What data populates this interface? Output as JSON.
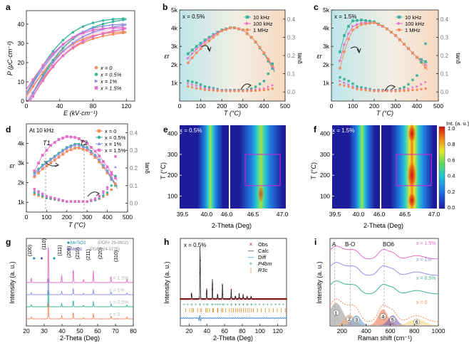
{
  "figure": {
    "panels": {
      "a": {
        "letter": "a",
        "ylabel": "P (μC·cm⁻²)",
        "xlabel": "E (kV·cm⁻¹)",
        "legend": [
          "x = 0",
          "x = 0.5%",
          "x = 1%",
          "x = 1.5%"
        ]
      },
      "b": {
        "letter": "b",
        "annotation": "x = 0.5%",
        "ylabel": "εr",
        "y2label": "tanδ",
        "xlabel": "T (°C)",
        "legend": [
          "10 kHz",
          "100 kHz",
          "1 MHz"
        ]
      },
      "c": {
        "letter": "c",
        "annotation": "x = 1.5%",
        "ylabel": "εr",
        "y2label": "tanδ",
        "xlabel": "T (°C)",
        "legend": [
          "10 kHz",
          "100 kHz",
          "1 MHz"
        ]
      },
      "d": {
        "letter": "d",
        "annotation": "At 10 kHz",
        "t1": "T1",
        "t2": "T2",
        "ylabel": "εr",
        "y2label": "tanδ",
        "xlabel": "T (°C)",
        "legend": [
          "x = 0",
          "x = 0.5%",
          "x = 1%",
          "x = 1.5%"
        ]
      },
      "e": {
        "letter": "e",
        "annotation": "x = 0.5%",
        "ylabel": "T (°C)",
        "xlabel": "2-Theta (Deg)",
        "xticks_left": [
          "39.5",
          "40.0",
          "46.0"
        ],
        "xticks_right": [
          "46.5",
          "47.0"
        ]
      },
      "f": {
        "letter": "f",
        "annotation": "x = 1.5%",
        "ylabel": "T (°C)",
        "xlabel": "2-Theta (Deg)",
        "xticks_left": [
          "39.5",
          "40.0",
          "46.0"
        ],
        "xticks_right": [
          "46.5",
          "47.0"
        ],
        "colorbar_title": "Int. (a. u.)",
        "colorbar_ticks": [
          "1.0",
          "0.8",
          "0.6",
          "0.4",
          "0.2",
          "0.0"
        ]
      },
      "g": {
        "letter": "g",
        "ylabel": "Intensity (a. u.)",
        "xlabel": "2-Theta (Deg)",
        "peaks": [
          "(100)",
          "(110)",
          "(111)",
          "(200)",
          "(210)",
          "(211)",
          "(220)",
          "(310)"
        ],
        "ref1": "MnTiO3",
        "ref1_pdf": "(PDF# 29-0902)",
        "ref2": "MnO2",
        "ref2_pdf": "(PDF# 24-0735)",
        "series_labels": [
          "x = 1.5%",
          "x = 1%",
          "x = 0.5%",
          "x = 0"
        ]
      },
      "h": {
        "letter": "h",
        "annotation": "x = 0.5%",
        "ylabel": "Intensity (a. u.)",
        "xlabel": "2-Theta (Deg)",
        "legend": [
          "Obs",
          "Calc",
          "Diff",
          "P4bm",
          "R3c"
        ]
      },
      "i": {
        "letter": "i",
        "ylabel": "Intensity (a. u.)",
        "xlabel": "Raman shift (cm⁻¹)",
        "band_A": "A",
        "band_BO": "B-O",
        "band_BO6": "BO6",
        "series_labels": [
          "x = 1.5%",
          "x = 1%",
          "x = 0.5%",
          "x = 0"
        ],
        "peak_numbers": [
          "1",
          "2",
          "3",
          "4",
          "5",
          "6"
        ]
      }
    },
    "colors": {
      "x0": "#f58a5a",
      "x05": "#3cb39a",
      "x1": "#8f8fe8",
      "x15": "#e36ec8",
      "f10k": "#3cb39a",
      "f100k": "#e36ec8",
      "f1M": "#f58a5a"
    }
  },
  "chart_data": [
    {
      "panel": "a",
      "type": "line",
      "title": "",
      "xlabel": "E (kV·cm⁻¹)",
      "ylabel": "P (μC·cm⁻²)",
      "xlim": [
        0,
        130
      ],
      "ylim": [
        0,
        47
      ],
      "xticks": [
        0,
        40,
        80,
        120
      ],
      "yticks": [
        0,
        10,
        20,
        30,
        40
      ],
      "series": [
        {
          "name": "x = 0",
          "ps": 36.5,
          "pr": 2.0,
          "emax": 120
        },
        {
          "name": "x = 0.5%",
          "ps": 43.5,
          "pr": 3.5,
          "emax": 120
        },
        {
          "name": "x = 1%",
          "ps": 40.5,
          "pr": 3.0,
          "emax": 120
        },
        {
          "name": "x = 1.5%",
          "ps": 38.5,
          "pr": 5.5,
          "emax": 120
        }
      ]
    },
    {
      "panel": "b",
      "type": "line",
      "xlabel": "T (°C)",
      "ylabel": "εr",
      "y2label": "tanδ",
      "xlim": [
        0,
        500
      ],
      "ylim": [
        0,
        5000
      ],
      "y2lim": [
        -0.05,
        0.45
      ],
      "xticks": [
        0,
        100,
        200,
        300,
        400,
        500
      ],
      "yticks": [
        "1k",
        "2k",
        "3k",
        "4k",
        "5k"
      ],
      "y2ticks": [
        0.0,
        0.1,
        0.2,
        0.3,
        0.4
      ],
      "eps_series": [
        {
          "name": "10 kHz",
          "T": [
            40,
            80,
            120,
            160,
            200,
            250,
            300,
            350,
            400,
            450
          ],
          "v": [
            2600,
            3000,
            3350,
            3650,
            3900,
            4050,
            3900,
            3400,
            2600,
            1600
          ]
        },
        {
          "name": "100 kHz",
          "T": [
            40,
            80,
            120,
            160,
            200,
            250,
            300,
            350,
            400,
            450
          ],
          "v": [
            2350,
            2850,
            3250,
            3600,
            3880,
            4050,
            3900,
            3400,
            2650,
            1700
          ]
        },
        {
          "name": "1 MHz",
          "T": [
            40,
            80,
            120,
            160,
            200,
            250,
            300,
            350,
            400,
            450
          ],
          "v": [
            2100,
            2650,
            3100,
            3500,
            3850,
            4050,
            3900,
            3400,
            2650,
            1800
          ]
        }
      ],
      "tan_series": [
        {
          "name": "10 kHz",
          "T": [
            40,
            80,
            120,
            200,
            300,
            350,
            400,
            430,
            450
          ],
          "v": [
            0.06,
            0.05,
            0.03,
            0.01,
            0.01,
            0.02,
            0.06,
            0.12,
            0.19
          ]
        },
        {
          "name": "100 kHz",
          "T": [
            40,
            80,
            120,
            200,
            300,
            350,
            400,
            450
          ],
          "v": [
            0.045,
            0.035,
            0.02,
            0.01,
            0.01,
            0.012,
            0.02,
            0.04
          ]
        },
        {
          "name": "1 MHz",
          "T": [
            40,
            80,
            120,
            200,
            300,
            350,
            400,
            450
          ],
          "v": [
            0.03,
            0.02,
            0.012,
            0.005,
            0.005,
            0.006,
            0.01,
            0.02
          ]
        }
      ]
    },
    {
      "panel": "c",
      "type": "line",
      "xlabel": "T (°C)",
      "ylabel": "εr",
      "y2label": "tanδ",
      "xlim": [
        0,
        500
      ],
      "ylim": [
        0,
        5000
      ],
      "y2lim": [
        -0.05,
        0.45
      ],
      "xticks": [
        0,
        100,
        200,
        300,
        400,
        500
      ],
      "yticks": [
        "1k",
        "2k",
        "3k",
        "4k",
        "5k"
      ],
      "y2ticks": [
        0.0,
        0.1,
        0.2,
        0.3,
        0.4
      ],
      "eps_series": [
        {
          "name": "10 kHz",
          "T": [
            40,
            60,
            80,
            100,
            140,
            200,
            250,
            300,
            350,
            400,
            450
          ],
          "v": [
            2700,
            3600,
            4100,
            4400,
            4450,
            4350,
            4050,
            3600,
            3000,
            2400,
            2100
          ]
        },
        {
          "name": "100 kHz",
          "T": [
            40,
            60,
            80,
            100,
            140,
            200,
            250,
            300,
            350,
            400,
            450
          ],
          "v": [
            2200,
            3100,
            3700,
            4100,
            4300,
            4300,
            4050,
            3600,
            3000,
            2400,
            1900
          ]
        },
        {
          "name": "1 MHz",
          "T": [
            40,
            60,
            80,
            100,
            140,
            200,
            250,
            300,
            350,
            400,
            450
          ],
          "v": [
            1800,
            2700,
            3400,
            3900,
            4200,
            4300,
            4050,
            3600,
            3000,
            2400,
            1700
          ]
        }
      ],
      "tan_series": [
        {
          "name": "10 kHz",
          "T": [
            40,
            80,
            120,
            200,
            300,
            350,
            400,
            430,
            450
          ],
          "v": [
            0.08,
            0.06,
            0.03,
            0.01,
            0.01,
            0.03,
            0.09,
            0.2,
            0.33
          ]
        },
        {
          "name": "100 kHz",
          "T": [
            40,
            80,
            120,
            200,
            300,
            350,
            400,
            450
          ],
          "v": [
            0.06,
            0.04,
            0.02,
            0.01,
            0.01,
            0.015,
            0.03,
            0.06
          ]
        },
        {
          "name": "1 MHz",
          "T": [
            40,
            80,
            120,
            200,
            300,
            350,
            400,
            450
          ],
          "v": [
            0.04,
            0.03,
            0.015,
            0.005,
            0.005,
            0.007,
            0.012,
            0.02
          ]
        }
      ]
    },
    {
      "panel": "d",
      "type": "line",
      "xlabel": "T (°C)",
      "ylabel": "εr",
      "y2label": "tanδ",
      "xlim": [
        0,
        500
      ],
      "ylim": [
        500,
        5000
      ],
      "y2lim": [
        -0.05,
        0.45
      ],
      "xticks": [
        0,
        100,
        200,
        300,
        400,
        500
      ],
      "yticks": [
        "1k",
        "2k",
        "3k",
        "4k"
      ],
      "y2ticks": [
        0.0,
        0.1,
        0.2,
        0.3,
        0.4
      ],
      "eps_series": [
        {
          "name": "x = 0",
          "T": [
            40,
            80,
            120,
            160,
            200,
            250,
            300,
            350,
            400,
            450
          ],
          "v": [
            2300,
            2700,
            3000,
            3300,
            3600,
            3800,
            3650,
            3200,
            2500,
            1700
          ]
        },
        {
          "name": "x = 0.5%",
          "T": [
            40,
            80,
            120,
            160,
            200,
            250,
            300,
            350,
            400,
            450
          ],
          "v": [
            2500,
            2900,
            3200,
            3500,
            3800,
            4000,
            3800,
            3300,
            2600,
            1700
          ]
        },
        {
          "name": "x = 1%",
          "T": [
            40,
            80,
            120,
            160,
            200,
            250,
            300,
            350,
            400,
            450
          ],
          "v": [
            2400,
            2850,
            3150,
            3450,
            3750,
            3950,
            3750,
            3300,
            2600,
            1800
          ]
        },
        {
          "name": "x = 1.5%",
          "T": [
            40,
            80,
            120,
            160,
            200,
            250,
            300,
            350,
            400,
            450
          ],
          "v": [
            2600,
            3400,
            3900,
            4200,
            4350,
            4300,
            4000,
            3500,
            2800,
            2100
          ]
        }
      ],
      "tan_series": [
        {
          "name": "x = 0",
          "T": [
            40,
            100,
            200,
            300,
            350,
            400,
            430,
            450
          ],
          "v": [
            0.05,
            0.03,
            0.01,
            0.01,
            0.02,
            0.05,
            0.09,
            0.13
          ]
        },
        {
          "name": "x = 0.5%",
          "T": [
            40,
            100,
            200,
            300,
            350,
            400,
            430,
            450
          ],
          "v": [
            0.06,
            0.03,
            0.01,
            0.01,
            0.02,
            0.06,
            0.12,
            0.19
          ]
        },
        {
          "name": "x = 1%",
          "T": [
            40,
            100,
            200,
            300,
            350,
            400,
            430,
            450
          ],
          "v": [
            0.07,
            0.04,
            0.01,
            0.01,
            0.025,
            0.08,
            0.16,
            0.25
          ]
        },
        {
          "name": "x = 1.5%",
          "T": [
            40,
            100,
            200,
            300,
            350,
            400,
            430,
            450
          ],
          "v": [
            0.08,
            0.04,
            0.01,
            0.01,
            0.03,
            0.09,
            0.2,
            0.33
          ]
        }
      ]
    },
    {
      "panel": "e",
      "type": "heatmap",
      "xlabel": "2-Theta (Deg)",
      "ylabel": "T (°C)",
      "xlim_left": [
        39.5,
        40.3
      ],
      "xlim_right": [
        46.0,
        47.0
      ],
      "ylim": [
        40,
        440
      ],
      "yticks": [
        100,
        200,
        300,
        400
      ],
      "peak_left": 40.0,
      "peak_right": 46.55
    },
    {
      "panel": "f",
      "type": "heatmap",
      "xlabel": "2-Theta (Deg)",
      "ylabel": "T (°C)",
      "xlim_left": [
        39.5,
        40.3
      ],
      "xlim_right": [
        46.0,
        47.0
      ],
      "ylim": [
        40,
        440
      ],
      "yticks": [
        100,
        200,
        300,
        400
      ],
      "peak_left": 40.0,
      "peak_right": 46.55,
      "colorbar": [
        0.0,
        1.0
      ]
    },
    {
      "panel": "g",
      "type": "line",
      "xlabel": "2-Theta (Deg)",
      "ylabel": "Intensity (a. u.)",
      "xlim": [
        20,
        80
      ],
      "xticks": [
        20,
        30,
        40,
        50,
        60,
        70,
        80
      ],
      "peak_positions": [
        22.7,
        32.3,
        39.8,
        46.3,
        52.1,
        57.6,
        67.5,
        76.5
      ],
      "peak_heights": [
        0.12,
        1.0,
        0.18,
        0.35,
        0.08,
        0.28,
        0.16,
        0.1
      ],
      "impurity_peaks": [
        {
          "label": "MnTiO3",
          "x": 24.3
        },
        {
          "label": "MnO2",
          "x": 28.6
        },
        {
          "label": "MnTiO3",
          "x": 35.6
        }
      ],
      "series": [
        "x = 0",
        "x = 0.5%",
        "x = 1%",
        "x = 1.5%"
      ]
    },
    {
      "panel": "h",
      "type": "scatter",
      "xlabel": "2-Theta (Deg)",
      "ylabel": "Intensity (a. u.)",
      "xlim": [
        10,
        130
      ],
      "xticks": [
        20,
        40,
        60,
        80,
        100,
        120
      ],
      "peak_positions": [
        22.7,
        32.3,
        39.8,
        46.3,
        52.1,
        57.6,
        67.5,
        72.2,
        76.5,
        81.0,
        85.5,
        90.0
      ],
      "peak_heights": [
        0.12,
        1.0,
        0.2,
        0.38,
        0.09,
        0.3,
        0.18,
        0.06,
        0.1,
        0.08,
        0.05,
        0.05
      ]
    },
    {
      "panel": "i",
      "type": "line",
      "xlabel": "Raman shift (cm⁻¹)",
      "ylabel": "Intensity (a. u.)",
      "xlim": [
        100,
        1000
      ],
      "xticks": [
        200,
        400,
        600,
        800,
        1000
      ],
      "band_positions": {
        "A": 140,
        "B-O": 270,
        "BO6": 550
      },
      "component_peaks": [
        {
          "n": 1,
          "c": 150,
          "h": 0.45,
          "w": 80
        },
        {
          "n": 2,
          "c": 260,
          "h": 0.22,
          "w": 60
        },
        {
          "n": 3,
          "c": 320,
          "h": 0.2,
          "w": 50
        },
        {
          "n": 4,
          "c": 540,
          "h": 0.32,
          "w": 55
        },
        {
          "n": 5,
          "c": 620,
          "h": 0.2,
          "w": 50
        },
        {
          "n": 6,
          "c": 820,
          "h": 0.12,
          "w": 90
        }
      ],
      "series": [
        "x = 0",
        "x = 0.5%",
        "x = 1%",
        "x = 1.5%"
      ]
    }
  ]
}
